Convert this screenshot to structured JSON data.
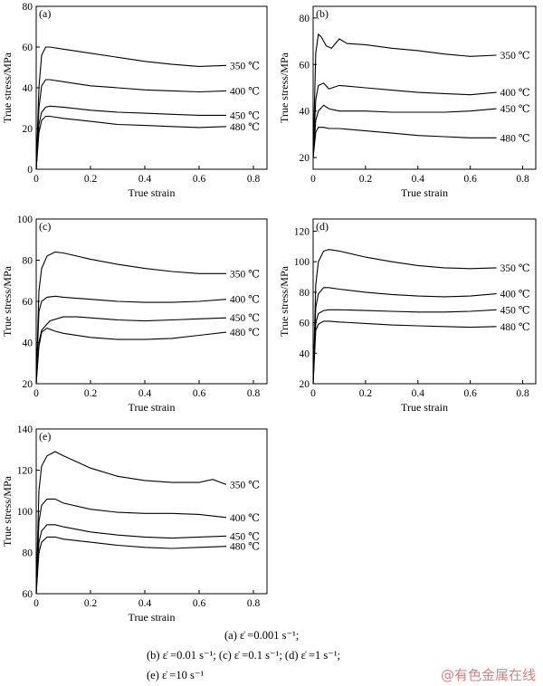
{
  "chart_data": [
    {
      "type": "line",
      "panel_label": "(a)",
      "xlabel": "True strain",
      "ylabel": "True stress/MPa",
      "xlim": [
        0,
        0.85
      ],
      "ylim": [
        0,
        80
      ],
      "xticks": [
        "0",
        "0.2",
        "0.4",
        "0.6",
        "0.8"
      ],
      "yticks": [
        "0",
        "20",
        "40",
        "60",
        "80"
      ],
      "series": [
        {
          "name": "350 ℃",
          "x": [
            0,
            0.01,
            0.02,
            0.035,
            0.05,
            0.1,
            0.2,
            0.3,
            0.4,
            0.5,
            0.6,
            0.7
          ],
          "y": [
            0,
            40,
            56,
            60,
            60,
            59,
            57,
            55,
            53,
            51.5,
            50.5,
            51
          ]
        },
        {
          "name": "400 ℃",
          "x": [
            0,
            0.01,
            0.02,
            0.035,
            0.05,
            0.1,
            0.2,
            0.3,
            0.4,
            0.5,
            0.6,
            0.7
          ],
          "y": [
            0,
            30,
            41,
            44,
            44,
            43,
            41,
            40,
            39,
            38.5,
            38,
            38.5
          ]
        },
        {
          "name": "450 ℃",
          "x": [
            0,
            0.01,
            0.02,
            0.035,
            0.05,
            0.1,
            0.2,
            0.3,
            0.4,
            0.5,
            0.6,
            0.7
          ],
          "y": [
            0,
            22,
            28,
            30.5,
            31,
            30.5,
            29,
            28,
            27.5,
            27,
            26.5,
            26.5
          ]
        },
        {
          "name": "480 ℃",
          "x": [
            0,
            0.01,
            0.02,
            0.035,
            0.05,
            0.1,
            0.2,
            0.3,
            0.4,
            0.5,
            0.6,
            0.7
          ],
          "y": [
            0,
            18,
            24,
            26,
            26,
            25,
            23.5,
            22,
            21.5,
            21,
            20.5,
            21
          ]
        }
      ]
    },
    {
      "type": "line",
      "panel_label": "(b)",
      "xlabel": "True strain",
      "ylabel": "True stress/MPa",
      "xlim": [
        0,
        0.85
      ],
      "ylim": [
        15,
        85
      ],
      "xticks": [
        "0",
        "0.2",
        "0.4",
        "0.6",
        "0.8"
      ],
      "yticks": [
        "20",
        "40",
        "60",
        "80"
      ],
      "series": [
        {
          "name": "350 ℃",
          "x": [
            0,
            0.01,
            0.02,
            0.03,
            0.05,
            0.07,
            0.1,
            0.13,
            0.2,
            0.3,
            0.4,
            0.5,
            0.6,
            0.7
          ],
          "y": [
            20,
            65,
            73,
            72,
            68,
            67,
            71,
            69,
            68.5,
            67,
            66,
            64.5,
            63.5,
            64
          ]
        },
        {
          "name": "400 ℃",
          "x": [
            0,
            0.01,
            0.02,
            0.04,
            0.06,
            0.1,
            0.2,
            0.3,
            0.4,
            0.5,
            0.6,
            0.7
          ],
          "y": [
            20,
            45,
            51,
            52,
            49.5,
            51,
            50,
            49,
            48,
            47.5,
            47,
            48
          ]
        },
        {
          "name": "450 ℃",
          "x": [
            0,
            0.01,
            0.02,
            0.04,
            0.06,
            0.1,
            0.2,
            0.3,
            0.4,
            0.5,
            0.6,
            0.7
          ],
          "y": [
            20,
            36,
            40,
            42.5,
            41,
            40,
            40,
            39.5,
            39.5,
            39.5,
            40,
            41
          ]
        },
        {
          "name": "480 ℃",
          "x": [
            0,
            0.01,
            0.02,
            0.04,
            0.06,
            0.1,
            0.2,
            0.3,
            0.4,
            0.5,
            0.6,
            0.7
          ],
          "y": [
            20,
            31,
            33,
            33,
            32.5,
            32.5,
            31.5,
            30.5,
            29.5,
            29,
            28.5,
            28.5
          ]
        }
      ]
    },
    {
      "type": "line",
      "panel_label": "(c)",
      "xlabel": "True strain",
      "ylabel": "True stress/MPa",
      "xlim": [
        0,
        0.85
      ],
      "ylim": [
        20,
        100
      ],
      "xticks": [
        "0",
        "0.2",
        "0.4",
        "0.6",
        "0.8"
      ],
      "yticks": [
        "20",
        "40",
        "60",
        "80",
        "100"
      ],
      "series": [
        {
          "name": "350 ℃",
          "x": [
            0,
            0.01,
            0.02,
            0.04,
            0.07,
            0.1,
            0.2,
            0.3,
            0.4,
            0.5,
            0.6,
            0.7
          ],
          "y": [
            20,
            65,
            76,
            82,
            84,
            83.5,
            80.5,
            78,
            76,
            74.5,
            73.5,
            73.5
          ]
        },
        {
          "name": "400 ℃",
          "x": [
            0,
            0.01,
            0.02,
            0.04,
            0.07,
            0.1,
            0.2,
            0.3,
            0.4,
            0.5,
            0.6,
            0.7
          ],
          "y": [
            20,
            55,
            60,
            62,
            62.5,
            62,
            61,
            60,
            59.5,
            59.5,
            60,
            61
          ]
        },
        {
          "name": "450 ℃",
          "x": [
            0,
            0.01,
            0.02,
            0.05,
            0.1,
            0.15,
            0.2,
            0.3,
            0.4,
            0.5,
            0.6,
            0.7
          ],
          "y": [
            20,
            40,
            46,
            50.5,
            52.5,
            52.5,
            52,
            51,
            50.5,
            51,
            51.5,
            52
          ]
        },
        {
          "name": "480 ℃",
          "x": [
            0,
            0.01,
            0.02,
            0.04,
            0.07,
            0.1,
            0.2,
            0.3,
            0.4,
            0.5,
            0.6,
            0.7
          ],
          "y": [
            20,
            38,
            45,
            47,
            45.5,
            44.5,
            42.5,
            41.5,
            41.5,
            42,
            43.5,
            45
          ]
        }
      ]
    },
    {
      "type": "line",
      "panel_label": "(d)",
      "xlabel": "True strain",
      "ylabel": "True stress/MPa",
      "xlim": [
        0,
        0.85
      ],
      "ylim": [
        20,
        128
      ],
      "xticks": [
        "0",
        "0.2",
        "0.4",
        "0.6",
        "0.8"
      ],
      "yticks": [
        "20",
        "40",
        "60",
        "80",
        "100",
        "120"
      ],
      "series": [
        {
          "name": "350 ℃",
          "x": [
            0,
            0.01,
            0.02,
            0.04,
            0.06,
            0.1,
            0.2,
            0.3,
            0.4,
            0.5,
            0.6,
            0.7
          ],
          "y": [
            20,
            85,
            100,
            107,
            108,
            107,
            103,
            100,
            97.5,
            96,
            95.5,
            96
          ]
        },
        {
          "name": "400 ℃",
          "x": [
            0,
            0.01,
            0.02,
            0.04,
            0.06,
            0.1,
            0.2,
            0.3,
            0.4,
            0.5,
            0.6,
            0.7
          ],
          "y": [
            20,
            70,
            79,
            83,
            83,
            82,
            80,
            78.5,
            77.5,
            77,
            77.5,
            79
          ]
        },
        {
          "name": "450 ℃",
          "x": [
            0,
            0.01,
            0.02,
            0.04,
            0.06,
            0.1,
            0.2,
            0.3,
            0.4,
            0.5,
            0.6,
            0.7
          ],
          "y": [
            20,
            60,
            66,
            68,
            68.5,
            68.5,
            68,
            67.5,
            67,
            67,
            67.5,
            68.5
          ]
        },
        {
          "name": "480 ℃",
          "x": [
            0,
            0.01,
            0.02,
            0.04,
            0.06,
            0.1,
            0.2,
            0.3,
            0.4,
            0.5,
            0.6,
            0.7
          ],
          "y": [
            20,
            55,
            59,
            61,
            61,
            60.5,
            59.5,
            58.5,
            58,
            57.5,
            57,
            57.5
          ]
        }
      ]
    },
    {
      "type": "line",
      "panel_label": "(e)",
      "xlabel": "True strain",
      "ylabel": "True stress/MPa",
      "xlim": [
        0,
        0.85
      ],
      "ylim": [
        60,
        140
      ],
      "xticks": [
        "0",
        "0.2",
        "0.4",
        "0.6",
        "0.8"
      ],
      "yticks": [
        "60",
        "80",
        "100",
        "120",
        "140"
      ],
      "series": [
        {
          "name": "350 ℃",
          "x": [
            0,
            0.01,
            0.02,
            0.04,
            0.07,
            0.1,
            0.2,
            0.3,
            0.4,
            0.5,
            0.6,
            0.65,
            0.7
          ],
          "y": [
            60,
            110,
            122,
            127,
            129,
            127,
            121,
            117,
            115,
            114,
            114,
            115.5,
            113
          ]
        },
        {
          "name": "400 ℃",
          "x": [
            0,
            0.01,
            0.02,
            0.04,
            0.07,
            0.1,
            0.2,
            0.3,
            0.4,
            0.5,
            0.6,
            0.7
          ],
          "y": [
            60,
            95,
            103,
            106,
            106,
            104,
            101,
            99.5,
            99,
            99,
            98.5,
            97
          ]
        },
        {
          "name": "450 ℃",
          "x": [
            0,
            0.01,
            0.02,
            0.04,
            0.07,
            0.1,
            0.2,
            0.3,
            0.4,
            0.5,
            0.6,
            0.7
          ],
          "y": [
            60,
            85,
            90.5,
            93.5,
            93.5,
            92.5,
            90,
            88.5,
            87.5,
            87,
            87.5,
            88
          ]
        },
        {
          "name": "480 ℃",
          "x": [
            0,
            0.01,
            0.02,
            0.04,
            0.07,
            0.1,
            0.2,
            0.3,
            0.4,
            0.5,
            0.6,
            0.7
          ],
          "y": [
            60,
            80,
            85,
            87.5,
            87.5,
            86.5,
            85,
            83.5,
            82.5,
            82,
            82.5,
            83
          ]
        }
      ]
    }
  ],
  "caption": {
    "line1": "(a)  ε̇ =0.001 s⁻¹;",
    "line2": "(b)  ε̇ =0.01  s⁻¹;  (c)  ε̇ =0.1  s⁻¹;  (d)  ε̇ =1  s⁻¹;",
    "line3": "(e)  ε̇ =10 s⁻¹"
  },
  "watermark": "@有色金属在线",
  "colors": {
    "line": "#000000",
    "watermark": "#e08080"
  }
}
